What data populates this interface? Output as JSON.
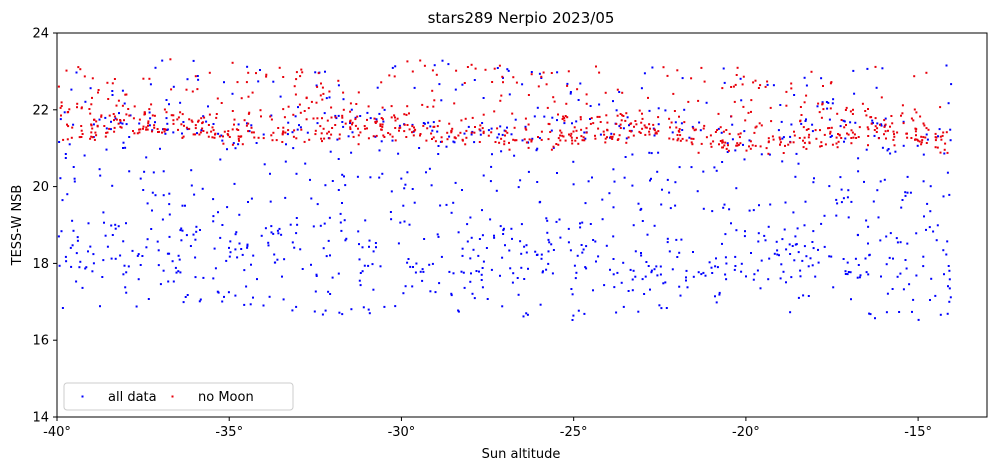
{
  "chart_data": {
    "type": "scatter",
    "title": "stars289 Nerpio 2023/05",
    "xlabel": "Sun altitude",
    "ylabel": "TESS-W NSB",
    "xlim": [
      -40,
      -13
    ],
    "ylim": [
      14,
      24
    ],
    "x_ticks": [
      -40,
      -35,
      -30,
      -25,
      -20,
      -15
    ],
    "x_tick_labels": [
      "-40°",
      "-35°",
      "-30°",
      "-25°",
      "-20°",
      "-15°"
    ],
    "y_ticks": [
      14,
      16,
      18,
      20,
      22,
      24
    ],
    "y_tick_labels": [
      "14",
      "16",
      "18",
      "20",
      "22",
      "24"
    ],
    "grid": false,
    "legend": {
      "placement": "lower-left",
      "columns": 2
    },
    "series": [
      {
        "name": "all data",
        "color": "#0000ff",
        "marker": "point",
        "bands": [
          {
            "y_start": 17.0,
            "y_end": 16.6,
            "spread": 0.08,
            "density": 55
          },
          {
            "y_start": 17.4,
            "y_end": 17.1,
            "spread": 0.1,
            "density": 55
          },
          {
            "y_start": 17.8,
            "y_end": 17.6,
            "spread": 0.15,
            "density": 110
          },
          {
            "y_start": 18.1,
            "y_end": 17.9,
            "spread": 0.18,
            "density": 110
          },
          {
            "y_start": 18.4,
            "y_end": 18.3,
            "spread": 0.2,
            "density": 110
          },
          {
            "y_start": 18.8,
            "y_end": 18.6,
            "spread": 0.18,
            "density": 90
          },
          {
            "y_start": 19.2,
            "y_end": 19.0,
            "spread": 0.15,
            "density": 70
          },
          {
            "y_start": 19.7,
            "y_end": 19.5,
            "spread": 0.12,
            "density": 55
          },
          {
            "y_start": 20.1,
            "y_end": 20.0,
            "spread": 0.12,
            "density": 55
          },
          {
            "y_start": 20.5,
            "y_end": 20.3,
            "spread": 0.1,
            "density": 45
          },
          {
            "y_start": 21.0,
            "y_end": 20.8,
            "spread": 0.1,
            "density": 45
          },
          {
            "y_start": 21.5,
            "y_end": 21.3,
            "spread": 0.2,
            "density": 150
          },
          {
            "y_start": 21.8,
            "y_end": 21.6,
            "spread": 0.12,
            "density": 60
          },
          {
            "y_start": 22.3,
            "y_end": 22.1,
            "spread": 0.1,
            "density": 40
          },
          {
            "y_start": 22.7,
            "y_end": 22.6,
            "spread": 0.08,
            "density": 35
          },
          {
            "y_start": 23.1,
            "y_end": 23.0,
            "spread": 0.06,
            "density": 30
          }
        ]
      },
      {
        "name": "no Moon",
        "color": "#e8000b",
        "marker": "point",
        "bands": [
          {
            "y_start": 21.55,
            "y_end": 21.25,
            "spread": 0.14,
            "density": 380
          },
          {
            "y_start": 21.4,
            "y_end": 21.05,
            "spread": 0.1,
            "density": 160
          },
          {
            "y_start": 21.8,
            "y_end": 21.6,
            "spread": 0.1,
            "density": 120
          },
          {
            "y_start": 22.0,
            "y_end": 21.9,
            "spread": 0.08,
            "density": 70
          },
          {
            "y_start": 22.3,
            "y_end": 22.1,
            "spread": 0.08,
            "density": 55
          },
          {
            "y_start": 22.6,
            "y_end": 22.5,
            "spread": 0.08,
            "density": 45
          },
          {
            "y_start": 22.9,
            "y_end": 22.8,
            "spread": 0.07,
            "density": 40
          },
          {
            "y_start": 23.15,
            "y_end": 23.05,
            "spread": 0.05,
            "density": 30
          }
        ]
      }
    ]
  }
}
